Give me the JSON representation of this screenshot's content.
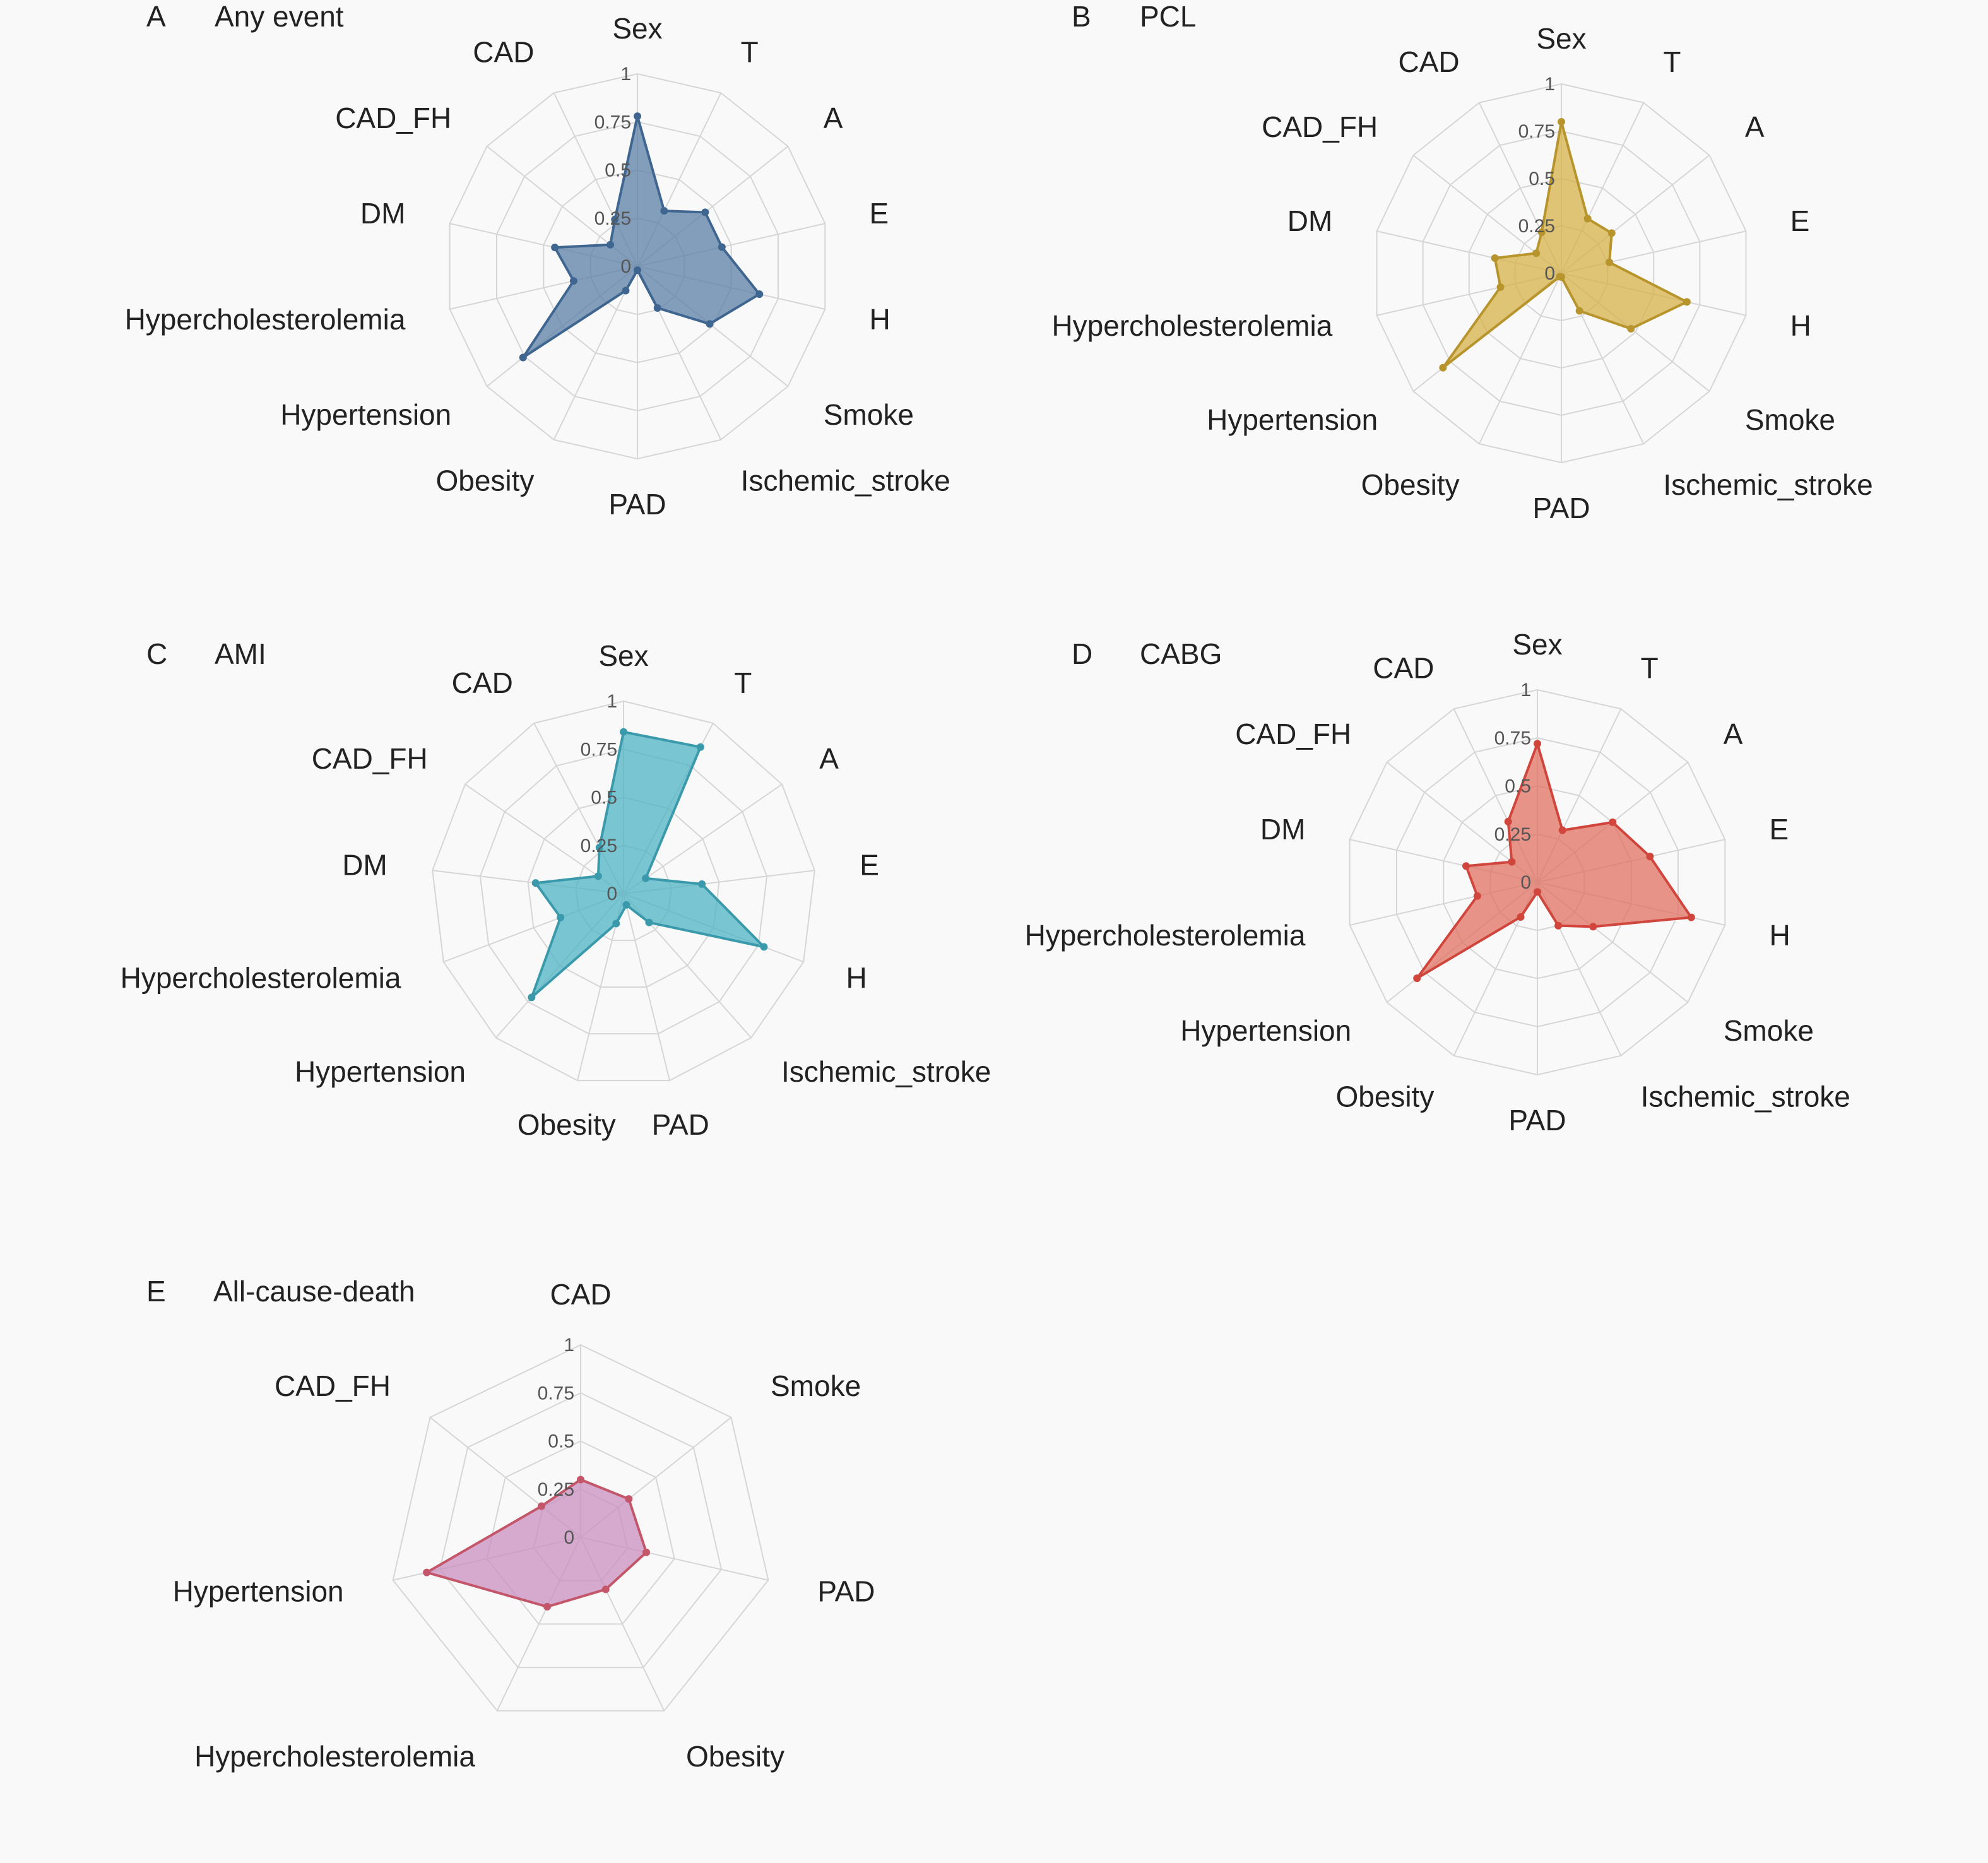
{
  "chart_data": [
    {
      "type": "radar",
      "letter": "A",
      "title": "Any event",
      "color": "#5b7fa6",
      "stroke": "#3f6690",
      "axes": [
        "Sex",
        "T",
        "A",
        "E",
        "H",
        "Smoke",
        "Ischemic_stroke",
        "PAD",
        "Obesity",
        "Hypertension",
        "Hypercholesterolemia",
        "DM",
        "CAD_FH",
        "CAD"
      ],
      "values": [
        0.78,
        0.32,
        0.45,
        0.45,
        0.65,
        0.48,
        0.24,
        0.02,
        0.14,
        0.76,
        0.34,
        0.44,
        0.18,
        0.27
      ],
      "ticks": [
        "0",
        "0.25",
        "0.5",
        "0.75",
        "1"
      ],
      "rlim": [
        0,
        1
      ]
    },
    {
      "type": "radar",
      "letter": "B",
      "title": "PCL",
      "color": "#d6b24a",
      "stroke": "#b8952c",
      "axes": [
        "Sex",
        "T",
        "A",
        "E",
        "H",
        "Smoke",
        "Ischemic_stroke",
        "PAD",
        "Obesity",
        "Hypertension",
        "Hypercholesterolemia",
        "DM",
        "CAD_FH",
        "CAD"
      ],
      "values": [
        0.8,
        0.32,
        0.34,
        0.26,
        0.68,
        0.47,
        0.22,
        0.02,
        0.02,
        0.8,
        0.33,
        0.36,
        0.17,
        0.24
      ],
      "ticks": [
        "0",
        "0.25",
        "0.5",
        "0.75",
        "1"
      ],
      "rlim": [
        0,
        1
      ]
    },
    {
      "type": "radar",
      "letter": "C",
      "title": "AMI",
      "color": "#4fb3c4",
      "stroke": "#3a9aab",
      "axes": [
        "Sex",
        "T",
        "A",
        "E",
        "H",
        "Ischemic_stroke",
        "PAD",
        "Obesity",
        "Hypertension",
        "Hypercholesterolemia",
        "DM",
        "CAD_FH",
        "CAD"
      ],
      "values": [
        0.84,
        0.86,
        0.14,
        0.41,
        0.78,
        0.2,
        0.06,
        0.16,
        0.72,
        0.35,
        0.46,
        0.16,
        0.27
      ],
      "ticks": [
        "0",
        "0.25",
        "0.5",
        "0.75",
        "1"
      ],
      "rlim": [
        0,
        1
      ]
    },
    {
      "type": "radar",
      "letter": "D",
      "title": "CABG",
      "color": "#e07062",
      "stroke": "#d0453c",
      "axes": [
        "Sex",
        "T",
        "A",
        "E",
        "H",
        "Smoke",
        "Ischemic_stroke",
        "PAD",
        "Obesity",
        "Hypertension",
        "Hypercholesterolemia",
        "DM",
        "CAD_FH",
        "CAD"
      ],
      "values": [
        0.72,
        0.3,
        0.5,
        0.6,
        0.82,
        0.37,
        0.25,
        0.05,
        0.2,
        0.8,
        0.32,
        0.38,
        0.17,
        0.35
      ],
      "ticks": [
        "0",
        "0.25",
        "0.5",
        "0.75",
        "1"
      ],
      "rlim": [
        0,
        1
      ]
    },
    {
      "type": "radar",
      "letter": "E",
      "title": "All-cause-death",
      "color": "#c98fbf",
      "stroke": "#c4566a",
      "axes": [
        "CAD",
        "Smoke",
        "PAD",
        "Obesity",
        "Hypercholesterolemia",
        "Hypertension",
        "CAD_FH"
      ],
      "values": [
        0.3,
        0.32,
        0.35,
        0.3,
        0.4,
        0.82,
        0.26
      ],
      "ticks": [
        "0",
        "0.25",
        "0.5",
        "0.75",
        "1"
      ],
      "rlim": [
        0,
        1
      ]
    }
  ]
}
